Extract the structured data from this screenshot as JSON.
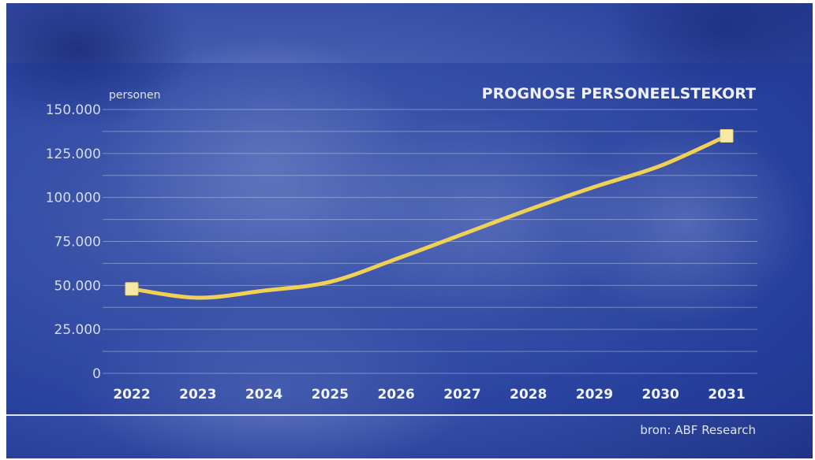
{
  "chart_data": {
    "type": "line",
    "title": "PROGNOSE PERSONEELSTEKORT",
    "ylabel": "personen",
    "source": "bron: ABF Research",
    "x": [
      "2022",
      "2023",
      "2024",
      "2025",
      "2026",
      "2027",
      "2028",
      "2029",
      "2030",
      "2031"
    ],
    "yticks": [
      "0",
      "25.000",
      "50.000",
      "75.000",
      "100.000",
      "125.000",
      "150.000"
    ],
    "ylim": [
      0,
      150000
    ],
    "grid": true,
    "series": [
      {
        "values": [
          48000,
          43000,
          47000,
          52000,
          65000,
          79000,
          93000,
          106000,
          118000,
          135000
        ],
        "markers": [
          true,
          false,
          false,
          false,
          false,
          false,
          false,
          false,
          false,
          true
        ]
      }
    ],
    "colors": {
      "line": "#f1d155",
      "marker": "#f6e8a6",
      "background": "#2f47a0"
    }
  }
}
